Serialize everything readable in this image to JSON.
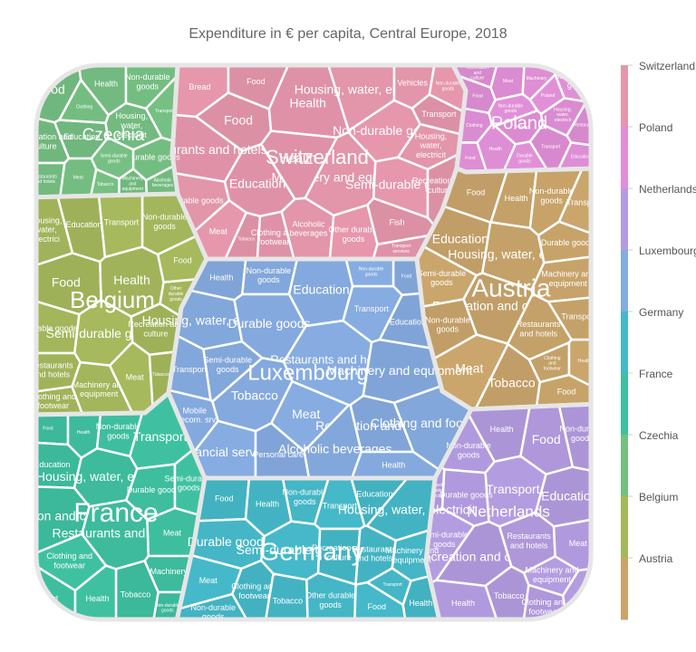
{
  "chart_data": {
    "type": "voronoi-treemap",
    "title": "Expenditure in € per capita, Central Europe, 2018",
    "countries": [
      {
        "name": "Switzerland",
        "color": "#e596ab",
        "categories": [
          "Food",
          "Health",
          "Housing, water, electricit",
          "Non-durable goods",
          "Transport",
          "Education",
          "Machinery and equipment",
          "Semi-durable goods",
          "Recreation and culture",
          "Restaurants and hotels",
          "Durable goods",
          "Meat",
          "Tobacco",
          "Clothing and footwear",
          "Alcoholic beverages",
          "Other durable goods",
          "Fish",
          "Transport services",
          "Vehicles",
          "Bread"
        ]
      },
      {
        "name": "Poland",
        "color": "#e08fd6",
        "categories": [
          "Food",
          "Poland",
          "Health",
          "Non-durable goods",
          "Transport",
          "Housing, water, electricit",
          "Education",
          "Durable goods",
          "Recreation and culture",
          "Meat",
          "Machinery",
          "Semi-durable goods",
          "Restaurants",
          "Clothing"
        ]
      },
      {
        "name": "Netherlands",
        "color": "#b39be0",
        "categories": [
          "Health",
          "Food",
          "Non-durable goods",
          "Transport",
          "Education",
          "Housing, water, electricit",
          "Durable goods",
          "Semi-durable goods",
          "Recreation and culture",
          "Restaurants and hotels",
          "Meat",
          "Machinery and equipment",
          "Tobacco",
          "Clothing and footwear"
        ]
      },
      {
        "name": "Luxembourg",
        "color": "#85abe0",
        "categories": [
          "Health",
          "Non-durable goods",
          "Education",
          "Transport",
          "Food",
          "Housing, water, electrici",
          "Durable goods",
          "Restaurants and hotels",
          "Machinery and equipment",
          "Semi-durable goods",
          "Tobacco",
          "Meat",
          "Recreation and culture",
          "Clothing and footwear",
          "Mobile telecom. srv.",
          "Financial services",
          "Personal care",
          "Alcoholic beverages"
        ]
      },
      {
        "name": "Germany",
        "color": "#45b8c8",
        "categories": [
          "Food",
          "Health",
          "Non-durable goods",
          "Transport",
          "Education",
          "Housing, water, electricit",
          "Durable goods",
          "Semi-durable goods",
          "Recreation and culture",
          "Restaurants and hotels",
          "Machinery and equipment",
          "Meat",
          "Clothing and footwear",
          "Tobacco",
          "Other durable goods"
        ]
      },
      {
        "name": "France",
        "color": "#3fc0a0",
        "categories": [
          "Food",
          "Health",
          "Non-durable goods",
          "Transport",
          "Education",
          "Housing, water, electricit",
          "Durable goods",
          "Semi-durable goods",
          "Recreation and culture",
          "Restaurants and hotels",
          "Meat",
          "Clothing and footwear",
          "Tobacco",
          "Machinery"
        ]
      },
      {
        "name": "Czechia",
        "color": "#75bf82",
        "categories": [
          "Food",
          "Health",
          "Non-durable goods",
          "Transport",
          "Education",
          "Housing, water, electricit",
          "Durable goods",
          "Semi-durable goods",
          "Recreation and culture",
          "Restaurants and hotels",
          "Meat",
          "Tobacco",
          "Machinery and equipment",
          "Alcoholic beverages",
          "Clothing"
        ]
      },
      {
        "name": "Belgium",
        "color": "#a5b85c",
        "categories": [
          "Food",
          "Health",
          "Non-durable goods",
          "Transport",
          "Education",
          "Housing, water, electrici",
          "Durable goods",
          "Semi-durable goods",
          "Recreation and culture",
          "Restaurants and hotels",
          "Machinery and equipment",
          "Meat",
          "Tobacco",
          "Clothing and footwear",
          "Other durable goods"
        ]
      },
      {
        "name": "Austria",
        "color": "#c9a56b",
        "categories": [
          "Food",
          "Health",
          "Non-durable goods",
          "Transport",
          "Education",
          "Housing, water, electric",
          "Durable goods",
          "Semi-durable goods",
          "Recreation and culture",
          "Restaurants and hotels",
          "Machinery and equipment",
          "Meat",
          "Tobacco",
          "Clothing and footwear"
        ]
      }
    ],
    "legend": {
      "placement": "right",
      "items": [
        "Switzerland",
        "Poland",
        "Netherlands",
        "Luxembourg",
        "Germany",
        "France",
        "Czechia",
        "Belgium",
        "Austria"
      ],
      "colors": [
        "#e596ab",
        "#e08fd6",
        "#b39be0",
        "#85abe0",
        "#45b8c8",
        "#3fc0a0",
        "#75bf82",
        "#a5b85c",
        "#c9a56b"
      ]
    }
  }
}
